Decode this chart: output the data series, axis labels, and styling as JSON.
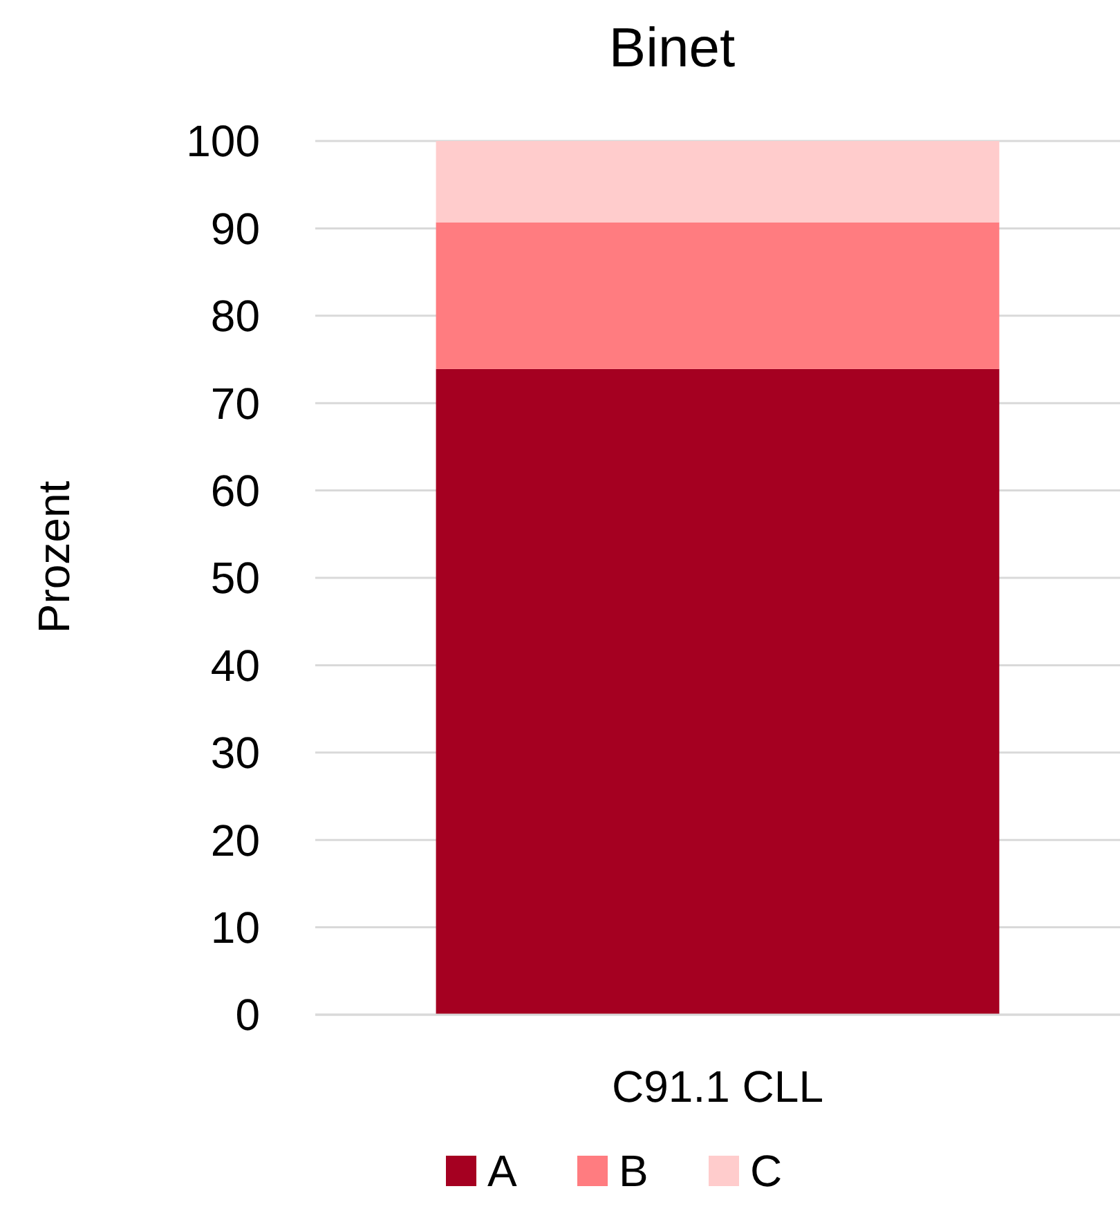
{
  "chart_data": {
    "type": "bar",
    "title": "Binet",
    "ylabel": "Prozent",
    "categories": [
      "C91.1 CLL"
    ],
    "stacked": true,
    "series": [
      {
        "name": "A",
        "color": "#a50021",
        "values": [
          73.9
        ]
      },
      {
        "name": "B",
        "color": "#ff7c80",
        "values": [
          16.8
        ]
      },
      {
        "name": "C",
        "color": "#ffcccc",
        "values": [
          9.3
        ]
      }
    ],
    "ylim": [
      0,
      100
    ],
    "yticks": [
      0,
      10,
      20,
      30,
      40,
      50,
      60,
      70,
      80,
      90,
      100
    ],
    "grid": "y",
    "legend": "bottom"
  }
}
